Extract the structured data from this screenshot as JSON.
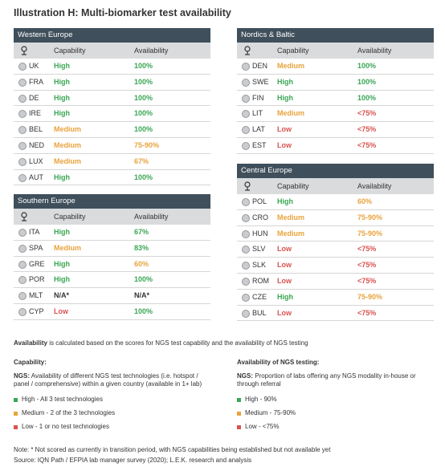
{
  "title": "Illustration H: Multi-biomarker test availability",
  "tables": [
    {
      "name": "Western Europe",
      "columns": [
        "Capability",
        "Availability"
      ],
      "rows": [
        {
          "country": "UK",
          "capability": "High",
          "availability": "100%",
          "capability_color": "#3aa655",
          "availability_color": "#3aa655"
        },
        {
          "country": "FRA",
          "capability": "High",
          "availability": "100%",
          "capability_color": "#3aa655",
          "availability_color": "#3aa655"
        },
        {
          "country": "DE",
          "capability": "High",
          "availability": "100%",
          "capability_color": "#3aa655",
          "availability_color": "#3aa655"
        },
        {
          "country": "IRE",
          "capability": "High",
          "availability": "100%",
          "capability_color": "#3aa655",
          "availability_color": "#3aa655"
        },
        {
          "country": "BEL",
          "capability": "Medium",
          "availability": "100%",
          "capability_color": "#e8a33d",
          "availability_color": "#3aa655"
        },
        {
          "country": "NED",
          "capability": "Medium",
          "availability": "75-90%",
          "capability_color": "#e8a33d",
          "availability_color": "#e8a33d"
        },
        {
          "country": "LUX",
          "capability": "Medium",
          "availability": "67%",
          "capability_color": "#e8a33d",
          "availability_color": "#e8a33d"
        },
        {
          "country": "AUT",
          "capability": "High",
          "availability": "100%",
          "capability_color": "#3aa655",
          "availability_color": "#3aa655"
        }
      ]
    },
    {
      "name": "Nordics & Baltic",
      "columns": [
        "Capability",
        "Availability"
      ],
      "rows": [
        {
          "country": "DEN",
          "capability": "Medium",
          "availability": "100%",
          "capability_color": "#e8a33d",
          "availability_color": "#3aa655"
        },
        {
          "country": "SWE",
          "capability": "High",
          "availability": "100%",
          "capability_color": "#3aa655",
          "availability_color": "#3aa655"
        },
        {
          "country": "FIN",
          "capability": "High",
          "availability": "100%",
          "capability_color": "#3aa655",
          "availability_color": "#3aa655"
        },
        {
          "country": "LIT",
          "capability": "Medium",
          "availability": "<75%",
          "capability_color": "#e8a33d",
          "availability_color": "#d9534f"
        },
        {
          "country": "LAT",
          "capability": "Low",
          "availability": "<75%",
          "capability_color": "#d9534f",
          "availability_color": "#d9534f"
        },
        {
          "country": "EST",
          "capability": "Low",
          "availability": "<75%",
          "capability_color": "#d9534f",
          "availability_color": "#d9534f"
        }
      ]
    },
    {
      "name": "Southern Europe",
      "columns": [
        "Capability",
        "Availability"
      ],
      "rows": [
        {
          "country": "ITA",
          "capability": "High",
          "availability": "67%",
          "capability_color": "#3aa655",
          "availability_color": "#3aa655"
        },
        {
          "country": "SPA",
          "capability": "Medium",
          "availability": "83%",
          "capability_color": "#e8a33d",
          "availability_color": "#3aa655"
        },
        {
          "country": "GRE",
          "capability": "High",
          "availability": "60%",
          "capability_color": "#3aa655",
          "availability_color": "#e8a33d"
        },
        {
          "country": "POR",
          "capability": "High",
          "availability": "100%",
          "capability_color": "#3aa655",
          "availability_color": "#3aa655"
        },
        {
          "country": "MLT",
          "capability": "N/A*",
          "availability": "N/A*",
          "capability_color": "#333333",
          "availability_color": "#333333"
        },
        {
          "country": "CYP",
          "capability": "Low",
          "availability": "100%",
          "capability_color": "#d9534f",
          "availability_color": "#3aa655"
        }
      ]
    },
    {
      "name": "Central Europe",
      "columns": [
        "Capability",
        "Availability"
      ],
      "rows": [
        {
          "country": "POL",
          "capability": "High",
          "availability": "60%",
          "capability_color": "#3aa655",
          "availability_color": "#e8a33d"
        },
        {
          "country": "CRO",
          "capability": "Medium",
          "availability": "75-90%",
          "capability_color": "#e8a33d",
          "availability_color": "#e8a33d"
        },
        {
          "country": "HUN",
          "capability": "Medium",
          "availability": "75-90%",
          "capability_color": "#e8a33d",
          "availability_color": "#e8a33d"
        },
        {
          "country": "SLV",
          "capability": "Low",
          "availability": "<75%",
          "capability_color": "#d9534f",
          "availability_color": "#d9534f"
        },
        {
          "country": "SLK",
          "capability": "Low",
          "availability": "<75%",
          "capability_color": "#d9534f",
          "availability_color": "#d9534f"
        },
        {
          "country": "ROM",
          "capability": "Low",
          "availability": "<75%",
          "capability_color": "#d9534f",
          "availability_color": "#d9534f"
        },
        {
          "country": "CZE",
          "capability": "High",
          "availability": "75-90%",
          "capability_color": "#3aa655",
          "availability_color": "#e8a33d"
        },
        {
          "country": "BUL",
          "capability": "Low",
          "availability": "<75%",
          "capability_color": "#d9534f",
          "availability_color": "#d9534f"
        }
      ]
    }
  ],
  "availability_note": {
    "bold": "Availability",
    "text": "is calculated based on the scores for NGS test capability and the availability of NGS testing"
  },
  "legends": [
    {
      "heading": "Capability:",
      "label": "NGS:",
      "text": "Availability of different NGS test technologies (i.e. hotspot / panel / comprehensive) within a given country (available in 1+ lab)",
      "items": [
        {
          "text": "High - All 3 test technologies",
          "color": "#3aa655"
        },
        {
          "text": "Medium - 2 of the 3 technologies",
          "color": "#e8a33d"
        },
        {
          "text": "Low - 1 or no test technologies",
          "color": "#d9534f"
        }
      ]
    },
    {
      "heading": "Availability of NGS testing:",
      "label": "NGS:",
      "text": "Proportion of labs offering any NGS modality in-house or through referral",
      "items": [
        {
          "text": "High - 90%",
          "color": "#3aa655"
        },
        {
          "text": "Medium - 75-90%",
          "color": "#e8a33d"
        },
        {
          "text": "Low - <75%",
          "color": "#d9534f"
        }
      ]
    }
  ],
  "note": "Note: * Not scored as currently in transition period, with NGS capabilities being established but not available yet",
  "source": "Source: IQN Path / EFPIA lab manager survey (2020); L.E.K. research and analysis"
}
